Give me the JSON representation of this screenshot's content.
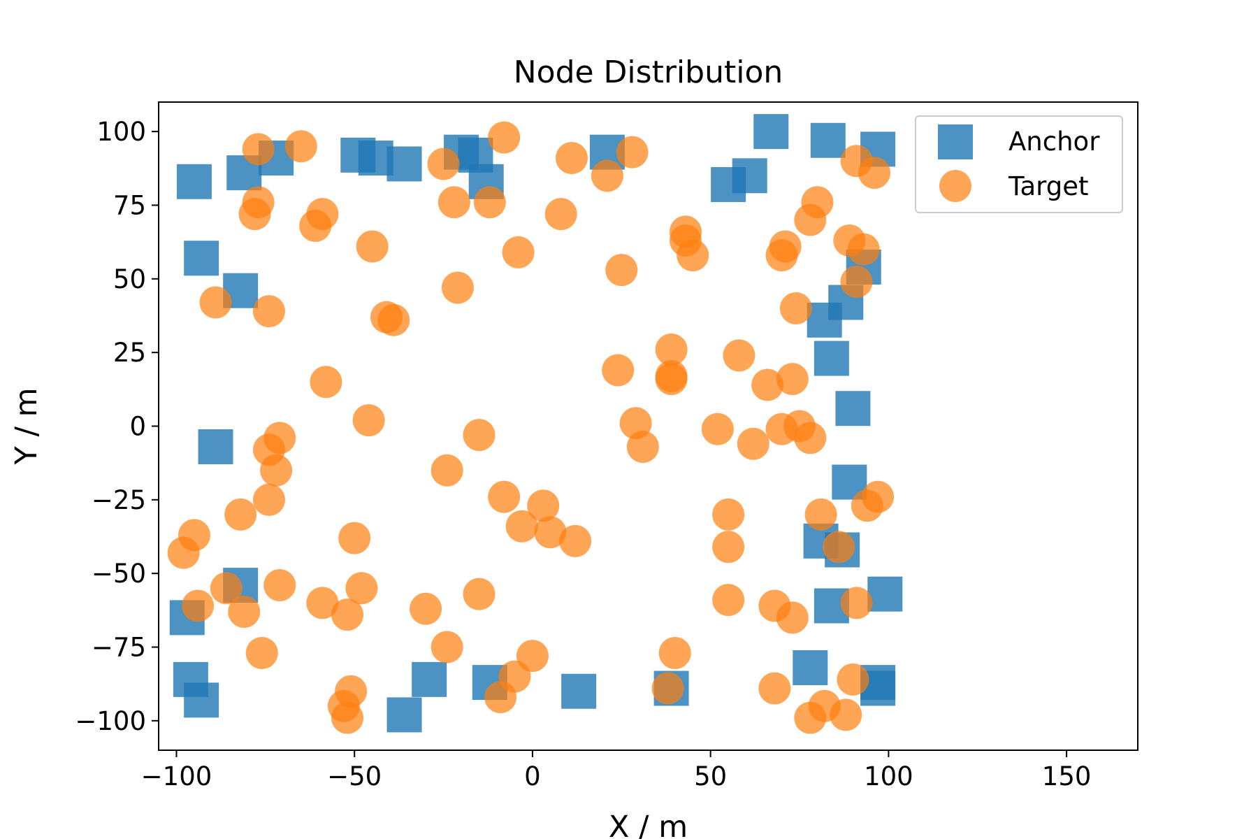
{
  "chart_data": {
    "type": "scatter",
    "title": "Node Distribution",
    "xlabel": "X / m",
    "ylabel": "Y / m",
    "xlim": [
      -105,
      170
    ],
    "ylim": [
      -110,
      110
    ],
    "xticks": [
      -100,
      -50,
      0,
      50,
      100,
      150
    ],
    "yticks": [
      -100,
      -75,
      -50,
      -25,
      0,
      25,
      50,
      75,
      100
    ],
    "xtick_labels": [
      "−100",
      "−50",
      "0",
      "50",
      "100",
      "150"
    ],
    "ytick_labels": [
      "−100",
      "−75",
      "−50",
      "−25",
      "0",
      "25",
      "50",
      "75",
      "100"
    ],
    "grid": false,
    "legend_position": "top-right",
    "series": [
      {
        "name": "Anchor",
        "marker": "square",
        "color": "#1f77b4",
        "points": [
          [
            -95,
            83
          ],
          [
            -81,
            86
          ],
          [
            -72,
            91
          ],
          [
            -49,
            92
          ],
          [
            -44,
            91
          ],
          [
            -36,
            89
          ],
          [
            -20,
            93
          ],
          [
            -16,
            92
          ],
          [
            -13,
            83
          ],
          [
            21,
            93
          ],
          [
            55,
            82
          ],
          [
            61,
            85
          ],
          [
            67,
            100
          ],
          [
            83,
            97
          ],
          [
            97,
            94
          ],
          [
            -93,
            57
          ],
          [
            -82,
            46
          ],
          [
            93,
            54
          ],
          [
            88,
            42
          ],
          [
            82,
            36
          ],
          [
            84,
            23
          ],
          [
            90,
            6
          ],
          [
            -89,
            -7
          ],
          [
            89,
            -19
          ],
          [
            -82,
            -54
          ],
          [
            81,
            -39
          ],
          [
            87,
            -42
          ],
          [
            -97,
            -65
          ],
          [
            84,
            -61
          ],
          [
            99,
            -57
          ],
          [
            -96,
            -86
          ],
          [
            -93,
            -93
          ],
          [
            -29,
            -86
          ],
          [
            -12,
            -87
          ],
          [
            13,
            -90
          ],
          [
            39,
            -89
          ],
          [
            78,
            -82
          ],
          [
            97,
            -87
          ],
          [
            97,
            -89
          ],
          [
            -36,
            -98
          ]
        ]
      },
      {
        "name": "Target",
        "marker": "circle",
        "color": "#ff7f0e",
        "points": [
          [
            -77,
            94
          ],
          [
            -65,
            95
          ],
          [
            -8,
            98
          ],
          [
            11,
            91
          ],
          [
            28,
            93
          ],
          [
            -25,
            89
          ],
          [
            91,
            90
          ],
          [
            96,
            86
          ],
          [
            21,
            85
          ],
          [
            -22,
            76
          ],
          [
            -12,
            76
          ],
          [
            8,
            72
          ],
          [
            -77,
            76
          ],
          [
            -78,
            72
          ],
          [
            -59,
            72
          ],
          [
            -61,
            68
          ],
          [
            80,
            76
          ],
          [
            78,
            70
          ],
          [
            -45,
            61
          ],
          [
            -4,
            59
          ],
          [
            43,
            66
          ],
          [
            43,
            63
          ],
          [
            45,
            58
          ],
          [
            71,
            61
          ],
          [
            70,
            58
          ],
          [
            89,
            63
          ],
          [
            93,
            60
          ],
          [
            91,
            49
          ],
          [
            25,
            53
          ],
          [
            -89,
            42
          ],
          [
            -74,
            39
          ],
          [
            -21,
            47
          ],
          [
            -41,
            37
          ],
          [
            -39,
            36
          ],
          [
            74,
            40
          ],
          [
            39,
            26
          ],
          [
            58,
            24
          ],
          [
            24,
            19
          ],
          [
            39,
            17
          ],
          [
            39,
            16
          ],
          [
            66,
            14
          ],
          [
            73,
            16
          ],
          [
            -58,
            15
          ],
          [
            -46,
            2
          ],
          [
            29,
            1
          ],
          [
            52,
            -1
          ],
          [
            70,
            -1
          ],
          [
            75,
            0
          ],
          [
            -15,
            -3
          ],
          [
            31,
            -7
          ],
          [
            62,
            -6
          ],
          [
            78,
            -4
          ],
          [
            -71,
            -4
          ],
          [
            -74,
            -8
          ],
          [
            -72,
            -15
          ],
          [
            -24,
            -15
          ],
          [
            -74,
            -25
          ],
          [
            -82,
            -30
          ],
          [
            -8,
            -24
          ],
          [
            3,
            -27
          ],
          [
            -3,
            -34
          ],
          [
            5,
            -36
          ],
          [
            12,
            -39
          ],
          [
            55,
            -30
          ],
          [
            81,
            -30
          ],
          [
            94,
            -27
          ],
          [
            97,
            -24
          ],
          [
            -95,
            -37
          ],
          [
            -98,
            -43
          ],
          [
            -50,
            -38
          ],
          [
            55,
            -41
          ],
          [
            86,
            -41
          ],
          [
            -86,
            -55
          ],
          [
            -71,
            -54
          ],
          [
            -48,
            -55
          ],
          [
            -59,
            -60
          ],
          [
            -52,
            -64
          ],
          [
            -94,
            -61
          ],
          [
            -81,
            -63
          ],
          [
            -30,
            -62
          ],
          [
            -15,
            -57
          ],
          [
            55,
            -59
          ],
          [
            68,
            -61
          ],
          [
            73,
            -65
          ],
          [
            91,
            -60
          ],
          [
            -76,
            -77
          ],
          [
            -24,
            -75
          ],
          [
            0,
            -78
          ],
          [
            40,
            -77
          ],
          [
            -5,
            -85
          ],
          [
            -51,
            -90
          ],
          [
            -53,
            -95
          ],
          [
            -52,
            -99
          ],
          [
            -9,
            -92
          ],
          [
            38,
            -89
          ],
          [
            68,
            -89
          ],
          [
            90,
            -86
          ],
          [
            82,
            -95
          ],
          [
            78,
            -99
          ],
          [
            88,
            -98
          ]
        ]
      }
    ]
  }
}
